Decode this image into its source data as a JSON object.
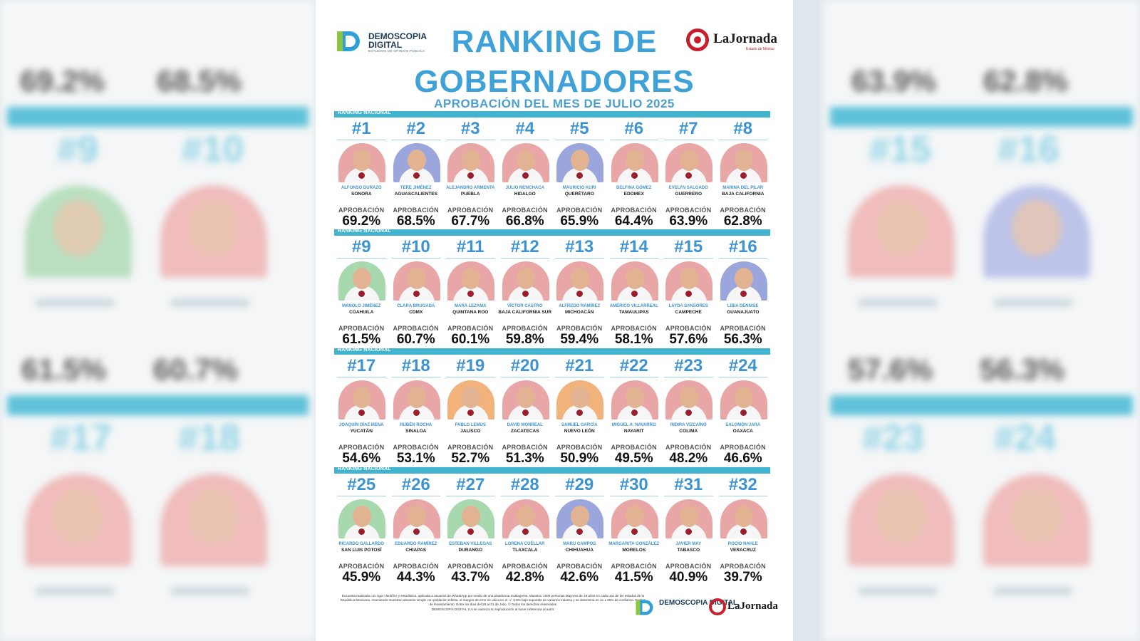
{
  "header": {
    "brand_left_line1": "DEMOSCOPIA",
    "brand_left_line2": "DIGITAL",
    "brand_left_tagline": "ESTUDIOS DE OPINIÓN PÚBLICA",
    "brand_right": "LaJornada",
    "brand_right_sub": "Estado de México",
    "title_line1": "RANKING DE",
    "title_line2": "GOBERNADORES",
    "subtitle": "APROBACIÓN DEL MES DE JULIO 2025"
  },
  "section_label": "RANKING NACIONAL",
  "approval_label": "APROBACIÓN",
  "colors": {
    "accent": "#3ea2d8",
    "bar": "#42b4cf",
    "morena": "#9c1e2c"
  },
  "sections": [
    {
      "governors": [
        {
          "rank": "#1",
          "name": "ALFONSO DURAZO",
          "state": "SONORA",
          "pct": "69.2%",
          "bg": "#e9a6a6"
        },
        {
          "rank": "#2",
          "name": "TERE JIMÉNEZ",
          "state": "AGUASCALIENTES",
          "pct": "68.5%",
          "bg": "#9aa6dc"
        },
        {
          "rank": "#3",
          "name": "ALEJANDRO ARMENTA",
          "state": "PUEBLA",
          "pct": "67.7%",
          "bg": "#e9a6a6"
        },
        {
          "rank": "#4",
          "name": "JULIO MENCHACA",
          "state": "HIDALGO",
          "pct": "66.8%",
          "bg": "#e9a6a6"
        },
        {
          "rank": "#5",
          "name": "MAURICIO KURI",
          "state": "QUERÉTARO",
          "pct": "65.9%",
          "bg": "#9aa6dc"
        },
        {
          "rank": "#6",
          "name": "DELFINA GÓMEZ",
          "state": "EDOMEX",
          "pct": "64.4%",
          "bg": "#e9a6a6"
        },
        {
          "rank": "#7",
          "name": "EVELYN SALGADO",
          "state": "GUERRERO",
          "pct": "63.9%",
          "bg": "#e9a6a6"
        },
        {
          "rank": "#8",
          "name": "MARINA DEL PILAR",
          "state": "BAJA CALIFORNIA",
          "pct": "62.8%",
          "bg": "#e9a6a6"
        }
      ]
    },
    {
      "governors": [
        {
          "rank": "#9",
          "name": "MANOLO JIMÉNEZ",
          "state": "COAHUILA",
          "pct": "61.5%",
          "bg": "#a8d8ae"
        },
        {
          "rank": "#10",
          "name": "CLARA BRUGADA",
          "state": "CDMX",
          "pct": "60.7%",
          "bg": "#e9a6a6"
        },
        {
          "rank": "#11",
          "name": "MARA LEZAMA",
          "state": "QUINTANA ROO",
          "pct": "60.1%",
          "bg": "#e9a6a6"
        },
        {
          "rank": "#12",
          "name": "VÍCTOR CASTRO",
          "state": "BAJA CALIFORNIA SUR",
          "pct": "59.8%",
          "bg": "#e9a6a6"
        },
        {
          "rank": "#13",
          "name": "ALFREDO RAMÍREZ",
          "state": "MICHOACÁN",
          "pct": "59.4%",
          "bg": "#e9a6a6"
        },
        {
          "rank": "#14",
          "name": "AMÉRICO VILLARREAL",
          "state": "TAMAULIPAS",
          "pct": "58.1%",
          "bg": "#e9a6a6"
        },
        {
          "rank": "#15",
          "name": "LAYDA SANSORES",
          "state": "CAMPECHE",
          "pct": "57.6%",
          "bg": "#e9a6a6"
        },
        {
          "rank": "#16",
          "name": "LIBIA DENNISE",
          "state": "GUANAJUATO",
          "pct": "56.3%",
          "bg": "#9aa6dc"
        }
      ]
    },
    {
      "governors": [
        {
          "rank": "#17",
          "name": "JOAQUÍN DÍAZ MENA",
          "state": "YUCATÁN",
          "pct": "54.6%",
          "bg": "#e9a6a6"
        },
        {
          "rank": "#18",
          "name": "RUBÉN ROCHA",
          "state": "SINALOA",
          "pct": "53.1%",
          "bg": "#e9a6a6"
        },
        {
          "rank": "#19",
          "name": "PABLO LEMUS",
          "state": "JALISCO",
          "pct": "52.7%",
          "bg": "#f2b27c"
        },
        {
          "rank": "#20",
          "name": "DAVID MONREAL",
          "state": "ZACATECAS",
          "pct": "51.3%",
          "bg": "#e9a6a6"
        },
        {
          "rank": "#21",
          "name": "SAMUEL GARCÍA",
          "state": "NUEVO LEÓN",
          "pct": "50.9%",
          "bg": "#f2b27c"
        },
        {
          "rank": "#22",
          "name": "MIGUEL A. NAVARRO",
          "state": "NAYARIT",
          "pct": "49.5%",
          "bg": "#e9a6a6"
        },
        {
          "rank": "#23",
          "name": "INDIRA VIZCAÍNO",
          "state": "COLIMA",
          "pct": "48.2%",
          "bg": "#e9a6a6"
        },
        {
          "rank": "#24",
          "name": "SALOMÓN JARA",
          "state": "OAXACA",
          "pct": "46.6%",
          "bg": "#e9a6a6"
        }
      ]
    },
    {
      "governors": [
        {
          "rank": "#25",
          "name": "RICARDO GALLARDO",
          "state": "SAN LUIS POTOSÍ",
          "pct": "45.9%",
          "bg": "#a8d8ae"
        },
        {
          "rank": "#26",
          "name": "EDUARDO RAMÍREZ",
          "state": "CHIAPAS",
          "pct": "44.3%",
          "bg": "#e9a6a6"
        },
        {
          "rank": "#27",
          "name": "ESTEBAN VILLEGAS",
          "state": "DURANGO",
          "pct": "43.7%",
          "bg": "#a8d8ae"
        },
        {
          "rank": "#28",
          "name": "LORENA CUÉLLAR",
          "state": "TLAXCALA",
          "pct": "42.8%",
          "bg": "#e9a6a6"
        },
        {
          "rank": "#29",
          "name": "MARU CAMPOS",
          "state": "CHIHUAHUA",
          "pct": "42.6%",
          "bg": "#9aa6dc"
        },
        {
          "rank": "#30",
          "name": "MARGARITA GONZÁLEZ",
          "state": "MORELOS",
          "pct": "41.5%",
          "bg": "#e9a6a6"
        },
        {
          "rank": "#31",
          "name": "JAVIER MAY",
          "state": "TABASCO",
          "pct": "40.9%",
          "bg": "#e9a6a6"
        },
        {
          "rank": "#32",
          "name": "ROCÍO NAHLE",
          "state": "VERACRUZ",
          "pct": "39.7%",
          "bg": "#e9a6a6"
        }
      ]
    }
  ],
  "footer": {
    "methodology": "Encuesta realizada con rigor científico y estadístico, aplicada a usuarios de WhatsApp por medio de una plataforma multiagente. Muestra: 1000 personas Mayores de 18 años en cada uno de los estados de la República Mexicana. Asumiendo muestreo aleatorio simple con población infinita, el margen de error se ubica en el +/- 3.8% bajo supuesto de varianza máxima y se determina en un ± 95% de confianza. Fechas de levantamiento: Entre los días del 28 al 31 de Julio. © Todos los derechos reservados",
    "rights": "DEMOSCOPIA DIGITAL S.A se autoriza su reproducción al hacer referencia al autor.",
    "logo_left": "DEMOSCOPIA DIGITAL",
    "logo_right": "LaJornada"
  },
  "background": {
    "left": {
      "ranks": [
        "#9",
        "#10",
        "#17",
        "#18"
      ],
      "pcts": [
        "69.2%",
        "68.5%",
        "61.5%",
        "60.7%"
      ]
    },
    "right": {
      "ranks": [
        "#15",
        "#16",
        "#23",
        "#24"
      ],
      "pcts": [
        "63.9%",
        "62.8%",
        "57.6%",
        "56.3%"
      ]
    }
  }
}
